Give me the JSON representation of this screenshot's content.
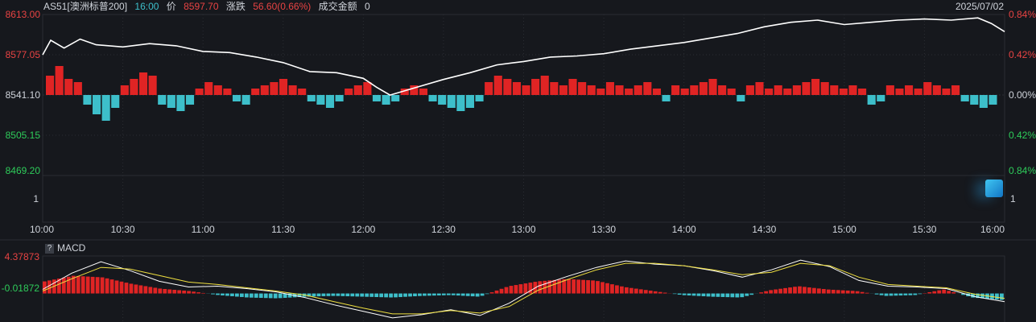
{
  "header": {
    "symbol": "AS51[澳洲标普200]",
    "time": "16:00",
    "price_label": "价",
    "price_value": "8597.70",
    "change_label": "涨跌",
    "change_value": "56.60(0.66%)",
    "turnover_label": "成交金额",
    "turnover_value": "0",
    "date": "2025/07/02"
  },
  "price_axis": {
    "left_ticks": [
      "8613.00",
      "8577.05",
      "8541.10",
      "8505.15",
      "8469.20"
    ],
    "right_ticks": [
      "0.84%",
      "0.42%",
      "0.00%",
      "0.42%",
      "0.84%"
    ],
    "volume_tick": "1"
  },
  "time_axis": {
    "ticks": [
      "10:00",
      "10:30",
      "11:00",
      "11:30",
      "12:00",
      "12:30",
      "13:00",
      "13:30",
      "14:00",
      "14:30",
      "15:00",
      "15:30",
      "16:00"
    ]
  },
  "macd_panel": {
    "help_label": "?",
    "title": "MACD",
    "ticks": [
      "4.37873",
      "-0.01872"
    ]
  },
  "colors": {
    "background": "#16181d",
    "up": "#e02424",
    "down": "#3dbfca",
    "price_line": "#ffffff",
    "signal_line": "#f0e040",
    "grid": "#2a2d33",
    "label": "#cfd3da",
    "axis_up": "#e84343",
    "axis_down": "#2ecc5a",
    "time_label": "#4fa3e0"
  },
  "chart_data": {
    "type": "line",
    "x_ticks": [
      "10:00",
      "10:30",
      "11:00",
      "11:30",
      "12:00",
      "12:30",
      "13:00",
      "13:30",
      "14:00",
      "14:30",
      "15:00",
      "15:30",
      "16:00"
    ],
    "ylim": [
      8469.2,
      8613.0
    ],
    "prev_close": 8541.1,
    "price_series": [
      [
        "10:00",
        8577.0
      ],
      [
        "10:03",
        8590.0
      ],
      [
        "10:08",
        8583.0
      ],
      [
        "10:14",
        8591.0
      ],
      [
        "10:20",
        8586.0
      ],
      [
        "10:30",
        8584.0
      ],
      [
        "10:40",
        8587.0
      ],
      [
        "10:50",
        8585.0
      ],
      [
        "11:00",
        8580.0
      ],
      [
        "11:10",
        8579.0
      ],
      [
        "11:20",
        8575.0
      ],
      [
        "11:30",
        8570.0
      ],
      [
        "11:40",
        8562.0
      ],
      [
        "11:50",
        8561.0
      ],
      [
        "12:00",
        8556.0
      ],
      [
        "12:05",
        8548.0
      ],
      [
        "12:10",
        8541.0
      ],
      [
        "12:20",
        8548.0
      ],
      [
        "12:30",
        8555.0
      ],
      [
        "12:40",
        8561.0
      ],
      [
        "12:50",
        8568.0
      ],
      [
        "13:00",
        8571.0
      ],
      [
        "13:10",
        8575.0
      ],
      [
        "13:20",
        8576.0
      ],
      [
        "13:30",
        8578.0
      ],
      [
        "13:40",
        8582.0
      ],
      [
        "13:50",
        8585.0
      ],
      [
        "14:00",
        8588.0
      ],
      [
        "14:10",
        8592.0
      ],
      [
        "14:20",
        8596.0
      ],
      [
        "14:30",
        8602.0
      ],
      [
        "14:40",
        8606.0
      ],
      [
        "14:50",
        8608.0
      ],
      [
        "15:00",
        8604.0
      ],
      [
        "15:10",
        8606.0
      ],
      [
        "15:20",
        8608.0
      ],
      [
        "15:30",
        8609.0
      ],
      [
        "15:40",
        8608.0
      ],
      [
        "15:50",
        8610.0
      ],
      [
        "15:55",
        8605.0
      ],
      [
        "16:00",
        8597.7
      ]
    ],
    "pnl_bars": [
      6,
      9,
      5,
      4,
      -3,
      -6,
      -8,
      -4,
      3,
      5,
      7,
      6,
      -3,
      -4,
      -5,
      -3,
      2,
      4,
      3,
      2,
      -2,
      -3,
      2,
      3,
      4,
      5,
      3,
      2,
      -2,
      -3,
      -4,
      -2,
      2,
      3,
      4,
      -2,
      -3,
      -2,
      2,
      3,
      2,
      -2,
      -3,
      -4,
      -5,
      -4,
      -2,
      4,
      6,
      5,
      4,
      3,
      5,
      6,
      4,
      3,
      5,
      4,
      3,
      2,
      4,
      3,
      2,
      3,
      4,
      2,
      -2,
      3,
      2,
      3,
      4,
      5,
      3,
      2,
      -2,
      3,
      4,
      2,
      3,
      2,
      3,
      4,
      5,
      4,
      3,
      2,
      3,
      2,
      -3,
      -2,
      3,
      2,
      3,
      2,
      4,
      3,
      2,
      3,
      -2,
      -3,
      -4,
      -3
    ],
    "macd": {
      "ylim": [
        -3.5,
        4.6
      ],
      "dif": [
        0.5,
        2.5,
        3.9,
        2.8,
        1.5,
        0.8,
        0.9,
        0.6,
        0.2,
        -0.5,
        -1.4,
        -2.2,
        -3.0,
        -2.6,
        -2.0,
        -2.7,
        -1.2,
        0.9,
        2.1,
        3.2,
        4.0,
        3.6,
        3.4,
        2.8,
        2.0,
        2.9,
        4.1,
        3.3,
        1.6,
        0.9,
        0.8,
        0.6,
        -0.4,
        -1.0
      ],
      "dea": [
        0.3,
        1.8,
        3.2,
        3.0,
        2.2,
        1.4,
        1.1,
        0.7,
        0.3,
        -0.2,
        -1.0,
        -1.8,
        -2.5,
        -2.5,
        -2.1,
        -2.4,
        -1.6,
        0.4,
        1.7,
        2.9,
        3.7,
        3.7,
        3.4,
        2.9,
        2.3,
        2.6,
        3.7,
        3.4,
        2.0,
        1.1,
        0.9,
        0.7,
        -0.1,
        -0.6
      ],
      "hist": [
        1.5,
        2.2,
        2.0,
        1.2,
        0.6,
        0.3,
        -0.2,
        -0.5,
        -0.6,
        -0.4,
        -0.3,
        -0.4,
        -0.5,
        -0.3,
        -0.2,
        -0.4,
        0.9,
        1.5,
        1.8,
        1.6,
        0.8,
        0.3,
        -0.2,
        -0.4,
        -0.5,
        0.4,
        0.9,
        0.5,
        0.3,
        -0.3,
        -0.2,
        0.5,
        -0.5,
        -0.8
      ]
    }
  }
}
